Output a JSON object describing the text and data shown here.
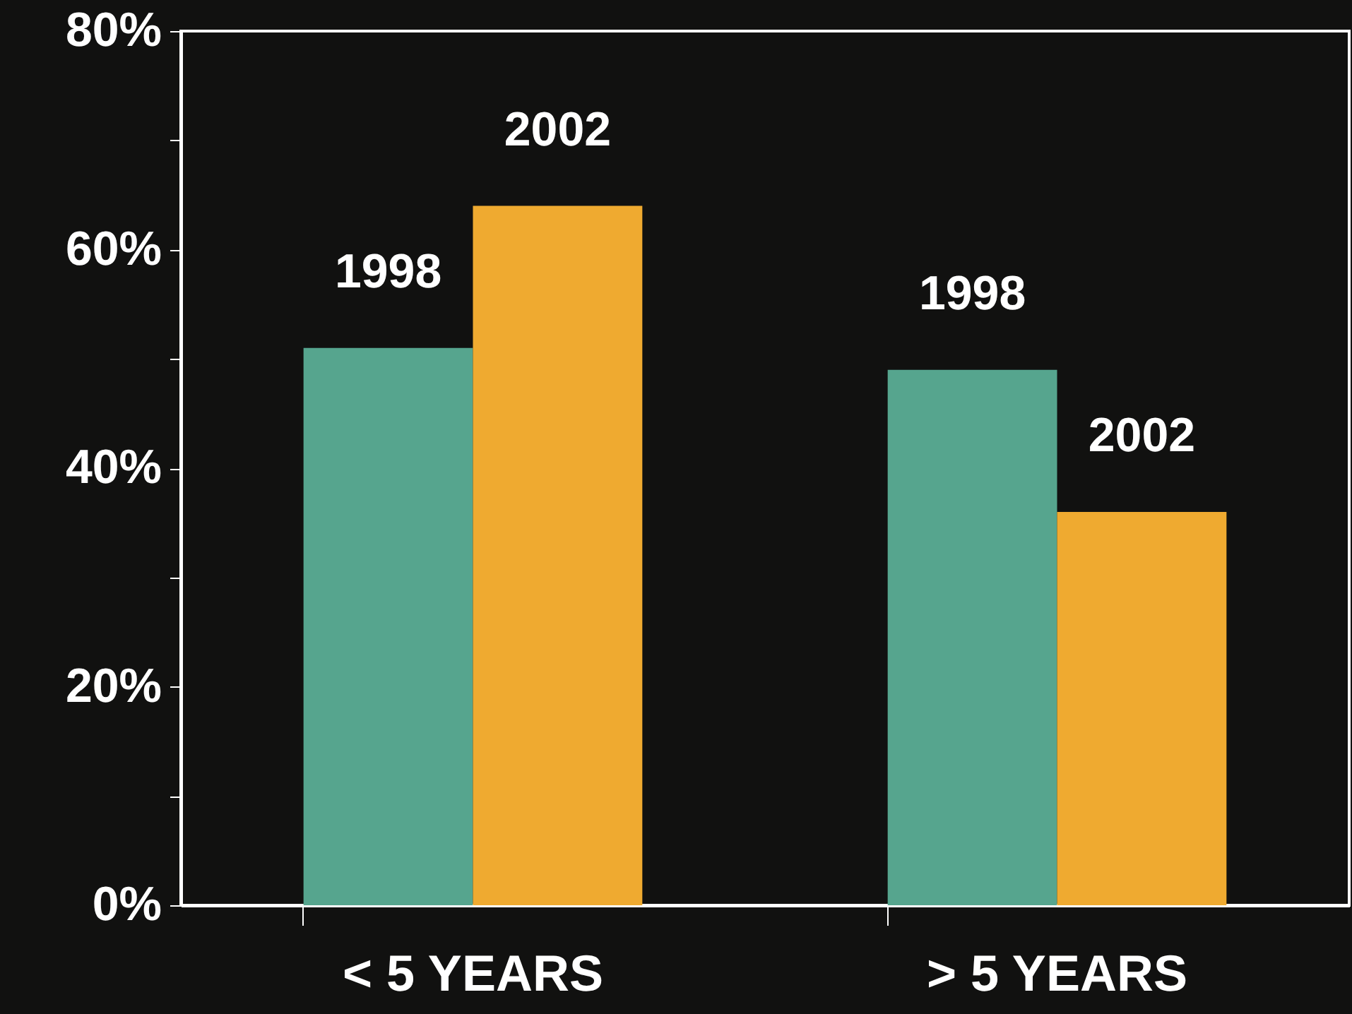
{
  "chart_data": {
    "type": "bar",
    "categories": [
      "< 5 YEARS",
      "> 5 YEARS"
    ],
    "series": [
      {
        "name": "1998",
        "color": "#56a58e",
        "values": [
          51,
          49
        ]
      },
      {
        "name": "2002",
        "color": "#efaa30",
        "values": [
          64,
          36
        ]
      }
    ],
    "ylim": [
      0,
      80
    ],
    "yticks": [
      {
        "value": 0,
        "label": "0%"
      },
      {
        "value": 10,
        "label": null
      },
      {
        "value": 20,
        "label": "20%"
      },
      {
        "value": 30,
        "label": null
      },
      {
        "value": 40,
        "label": "40%"
      },
      {
        "value": 50,
        "label": null
      },
      {
        "value": 60,
        "label": "60%"
      },
      {
        "value": 70,
        "label": null
      },
      {
        "value": 80,
        "label": "80%"
      }
    ],
    "grid": false,
    "legend": false
  }
}
